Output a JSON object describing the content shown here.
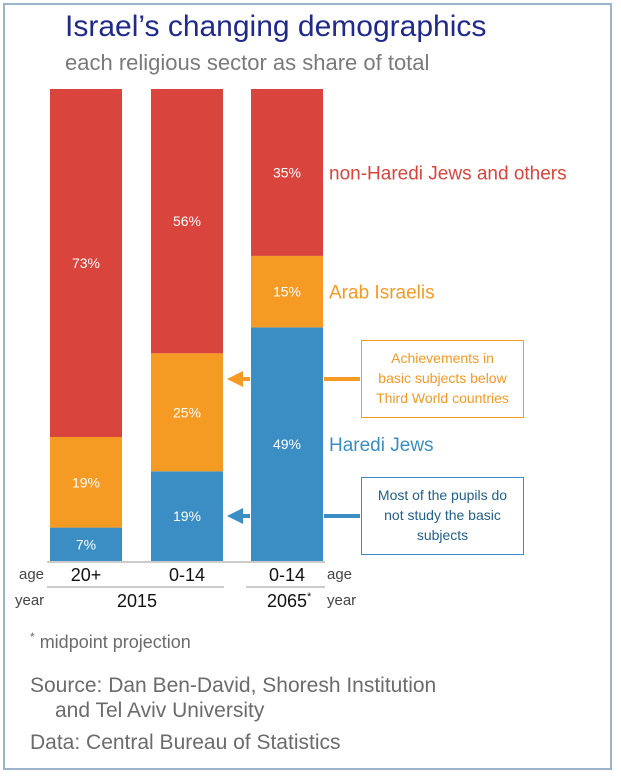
{
  "title": "Israel’s changing demographics",
  "subtitle": "each religious sector as share of total",
  "colors": {
    "non_haredi": "#d9453d",
    "arab": "#f59a23",
    "haredi": "#3a8ec4",
    "title": "#1f2a8a"
  },
  "chart_data": {
    "type": "bar",
    "stacked": true,
    "categories": [
      "20+",
      "0-14",
      "0-14"
    ],
    "category_groups": [
      "2015",
      "2015",
      "2065"
    ],
    "ylim": [
      0,
      100
    ],
    "series": [
      {
        "name": "Haredi Jews",
        "values": [
          7,
          19,
          49
        ],
        "labels": [
          "7%",
          "19%",
          "49%"
        ]
      },
      {
        "name": "Arab Israelis",
        "values": [
          19,
          25,
          15
        ],
        "labels": [
          "19%",
          "25%",
          "15%"
        ]
      },
      {
        "name": "non-Haredi Jews and others",
        "values": [
          73,
          56,
          35
        ],
        "labels": [
          "73%",
          "56%",
          "35%"
        ]
      }
    ]
  },
  "axis": {
    "age_label_left": "age",
    "age_label_right": "age",
    "year_label_left": "year",
    "year_label_right": "year",
    "year_2015": "2015",
    "year_2065": "2065",
    "year_2065_mark": "*"
  },
  "callouts": {
    "achievements": [
      "Achievements in",
      "basic subjects below",
      "Third World countries"
    ],
    "pupils": [
      "Most of the pupils do",
      "not study the basic",
      "subjects"
    ]
  },
  "footnote_mark": "*",
  "footnote": "midpoint projection",
  "source_line1": "Source: Dan Ben-David, Shoresh Institution",
  "source_line2": "and Tel Aviv University",
  "data_source": "Data: Central Bureau of Statistics"
}
